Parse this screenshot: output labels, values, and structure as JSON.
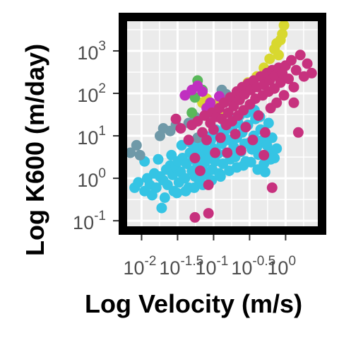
{
  "chart_data": {
    "type": "scatter",
    "title": "",
    "xlabel": "Log Velocity (m/s)",
    "ylabel": "Log K600 (m/day)",
    "x_scale": "log10",
    "y_scale": "log10",
    "xlim": [
      0.0063,
      2.8
    ],
    "ylim": [
      0.074,
      5000
    ],
    "grid": true,
    "legend": "none",
    "x_ticks": [
      {
        "value": 0.01,
        "base": "10",
        "exp": "-2"
      },
      {
        "value": 0.0316,
        "base": "10",
        "exp": "-1.5"
      },
      {
        "value": 0.1,
        "base": "10",
        "exp": "-1"
      },
      {
        "value": 0.316,
        "base": "10",
        "exp": "-0.5"
      },
      {
        "value": 1,
        "base": "10",
        "exp": "0"
      }
    ],
    "y_ticks": [
      {
        "value": 0.1,
        "base": "10",
        "exp": "-1"
      },
      {
        "value": 1,
        "base": "10",
        "exp": "0"
      },
      {
        "value": 10,
        "base": "10",
        "exp": "1"
      },
      {
        "value": 100,
        "base": "10",
        "exp": "2"
      },
      {
        "value": 1000,
        "base": "10",
        "exp": "3"
      }
    ],
    "series": [
      {
        "color": "#35c4e4",
        "points": [
          [
            0.008,
            0.6
          ],
          [
            0.009,
            0.8
          ],
          [
            0.011,
            0.5
          ],
          [
            0.012,
            1
          ],
          [
            0.013,
            0.7
          ],
          [
            0.015,
            1.3
          ],
          [
            0.016,
            0.6
          ],
          [
            0.018,
            1.1
          ],
          [
            0.019,
            0.2
          ],
          [
            0.02,
            0.9
          ],
          [
            0.022,
            1.6
          ],
          [
            0.023,
            0.7
          ],
          [
            0.025,
            2
          ],
          [
            0.027,
            1.2
          ],
          [
            0.028,
            0.5
          ],
          [
            0.03,
            1.8
          ],
          [
            0.032,
            2.5
          ],
          [
            0.033,
            0.8
          ],
          [
            0.035,
            1.4
          ],
          [
            0.037,
            3
          ],
          [
            0.04,
            1
          ],
          [
            0.042,
            2.2
          ],
          [
            0.045,
            0.6
          ],
          [
            0.047,
            4
          ],
          [
            0.05,
            1.5
          ],
          [
            0.052,
            2.8
          ],
          [
            0.055,
            1.1
          ],
          [
            0.058,
            5
          ],
          [
            0.06,
            2
          ],
          [
            0.063,
            0.9
          ],
          [
            0.066,
            3.5
          ],
          [
            0.07,
            1.7
          ],
          [
            0.073,
            6
          ],
          [
            0.076,
            2.4
          ],
          [
            0.08,
            1.2
          ],
          [
            0.084,
            4.5
          ],
          [
            0.088,
            3
          ],
          [
            0.092,
            8
          ],
          [
            0.096,
            1.6
          ],
          [
            0.1,
            5
          ],
          [
            0.105,
            2.5
          ],
          [
            0.11,
            10
          ],
          [
            0.115,
            3.8
          ],
          [
            0.12,
            1.3
          ],
          [
            0.13,
            6.5
          ],
          [
            0.135,
            2.2
          ],
          [
            0.14,
            12
          ],
          [
            0.15,
            4
          ],
          [
            0.16,
            8
          ],
          [
            0.17,
            2.8
          ],
          [
            0.18,
            15
          ],
          [
            0.19,
            5.5
          ],
          [
            0.2,
            3.2
          ],
          [
            0.21,
            9
          ],
          [
            0.22,
            20
          ],
          [
            0.24,
            4.2
          ],
          [
            0.25,
            12
          ],
          [
            0.27,
            6.5
          ],
          [
            0.28,
            2.5
          ],
          [
            0.3,
            18
          ],
          [
            0.32,
            7
          ],
          [
            0.34,
            4.8
          ],
          [
            0.36,
            10
          ],
          [
            0.38,
            25
          ],
          [
            0.4,
            5.5
          ],
          [
            0.42,
            3.6
          ],
          [
            0.45,
            14
          ],
          [
            0.48,
            8
          ],
          [
            0.5,
            2.2
          ],
          [
            0.55,
            6
          ],
          [
            0.6,
            4
          ],
          [
            0.65,
            9
          ],
          [
            0.7,
            3
          ],
          [
            0.011,
            2.5
          ],
          [
            0.014,
            0.4
          ],
          [
            0.017,
            2.8
          ],
          [
            0.021,
            0.35
          ],
          [
            0.026,
            3.5
          ],
          [
            0.031,
            0.45
          ],
          [
            0.036,
            6
          ],
          [
            0.041,
            0.5
          ],
          [
            0.048,
            7
          ],
          [
            0.054,
            0.6
          ],
          [
            0.062,
            8.5
          ],
          [
            0.071,
            0.7
          ],
          [
            0.082,
            9.5
          ],
          [
            0.094,
            0.9
          ],
          [
            0.107,
            14
          ],
          [
            0.125,
            1.1
          ],
          [
            0.145,
            18
          ],
          [
            0.165,
            1.5
          ],
          [
            0.185,
            24
          ],
          [
            0.21,
            1.8
          ],
          [
            0.23,
            30
          ],
          [
            0.26,
            2
          ],
          [
            0.29,
            35
          ],
          [
            0.33,
            2.4
          ],
          [
            0.37,
            40
          ],
          [
            0.41,
            1.6
          ],
          [
            0.44,
            28
          ],
          [
            0.52,
            1.4
          ],
          [
            0.58,
            20
          ],
          [
            0.62,
            2.8
          ],
          [
            0.75,
            5
          ]
        ]
      },
      {
        "color": "#6f99a8",
        "points": [
          [
            0.007,
            4
          ],
          [
            0.0085,
            6
          ],
          [
            0.0095,
            3.5
          ],
          [
            0.018,
            10
          ],
          [
            0.02,
            15
          ],
          [
            0.025,
            13
          ],
          [
            0.03,
            18
          ],
          [
            0.045,
            20
          ],
          [
            0.055,
            28
          ],
          [
            0.06,
            9
          ],
          [
            0.09,
            35
          ],
          [
            0.13,
            120
          ],
          [
            0.15,
            95
          ],
          [
            0.18,
            70
          ]
        ]
      },
      {
        "color": "#d8d82f",
        "points": [
          [
            0.07,
            60
          ],
          [
            0.08,
            75
          ],
          [
            0.1,
            40
          ],
          [
            0.12,
            65
          ],
          [
            0.13,
            30
          ],
          [
            0.25,
            130
          ],
          [
            0.3,
            180
          ],
          [
            0.4,
            250
          ],
          [
            0.5,
            400
          ],
          [
            0.6,
            650
          ],
          [
            0.7,
            1100
          ],
          [
            0.75,
            1500
          ],
          [
            0.8,
            800
          ],
          [
            0.9,
            2500
          ],
          [
            0.95,
            4000
          ],
          [
            0.85,
            1800
          ]
        ]
      },
      {
        "color": "#59b85a",
        "points": [
          [
            0.06,
            200
          ],
          [
            0.07,
            120
          ],
          [
            0.05,
            35
          ],
          [
            0.055,
            80
          ]
        ]
      },
      {
        "color": "#c02fc0",
        "points": [
          [
            0.05,
            120
          ],
          [
            0.06,
            150
          ],
          [
            0.04,
            90
          ],
          [
            0.07,
            110
          ],
          [
            0.08,
            45
          ],
          [
            0.09,
            60
          ],
          [
            0.1,
            38
          ],
          [
            0.12,
            85
          ]
        ]
      },
      {
        "color": "#c7317e",
        "points": [
          [
            0.03,
            25
          ],
          [
            0.035,
            15
          ],
          [
            0.045,
            8
          ],
          [
            0.05,
            18
          ],
          [
            0.055,
            3
          ],
          [
            0.06,
            22
          ],
          [
            0.07,
            12
          ],
          [
            0.065,
            1.5
          ],
          [
            0.075,
            30
          ],
          [
            0.08,
            8
          ],
          [
            0.085,
            0.7
          ],
          [
            0.09,
            20
          ],
          [
            0.095,
            35
          ],
          [
            0.1,
            14
          ],
          [
            0.105,
            4
          ],
          [
            0.11,
            28
          ],
          [
            0.12,
            45
          ],
          [
            0.125,
            9
          ],
          [
            0.13,
            25
          ],
          [
            0.14,
            60
          ],
          [
            0.15,
            18
          ],
          [
            0.155,
            4
          ],
          [
            0.16,
            35
          ],
          [
            0.17,
            80
          ],
          [
            0.18,
            22
          ],
          [
            0.19,
            50
          ],
          [
            0.2,
            11
          ],
          [
            0.21,
            110
          ],
          [
            0.22,
            30
          ],
          [
            0.23,
            70
          ],
          [
            0.24,
            4.5
          ],
          [
            0.25,
            140
          ],
          [
            0.26,
            40
          ],
          [
            0.27,
            95
          ],
          [
            0.28,
            16
          ],
          [
            0.3,
            170
          ],
          [
            0.32,
            55
          ],
          [
            0.33,
            120
          ],
          [
            0.35,
            8
          ],
          [
            0.36,
            200
          ],
          [
            0.38,
            75
          ],
          [
            0.4,
            140
          ],
          [
            0.42,
            30
          ],
          [
            0.45,
            250
          ],
          [
            0.48,
            90
          ],
          [
            0.5,
            160
          ],
          [
            0.52,
            12
          ],
          [
            0.55,
            300
          ],
          [
            0.58,
            110
          ],
          [
            0.6,
            200
          ],
          [
            0.62,
            45
          ],
          [
            0.65,
            350
          ],
          [
            0.7,
            130
          ],
          [
            0.72,
            260
          ],
          [
            0.75,
            60
          ],
          [
            0.8,
            400
          ],
          [
            0.85,
            180
          ],
          [
            0.9,
            300
          ],
          [
            0.95,
            90
          ],
          [
            1.0,
            450
          ],
          [
            1.1,
            220
          ],
          [
            1.2,
            600
          ],
          [
            1.3,
            140
          ],
          [
            1.4,
            350
          ],
          [
            1.6,
            800
          ],
          [
            1.8,
            250
          ],
          [
            2.0,
            500
          ],
          [
            2.3,
            300
          ],
          [
            0.055,
            0.12
          ],
          [
            0.085,
            0.15
          ],
          [
            0.65,
            0.6
          ],
          [
            1.5,
            12
          ],
          [
            1.3,
            60
          ],
          [
            0.5,
            3.5
          ]
        ]
      }
    ]
  }
}
